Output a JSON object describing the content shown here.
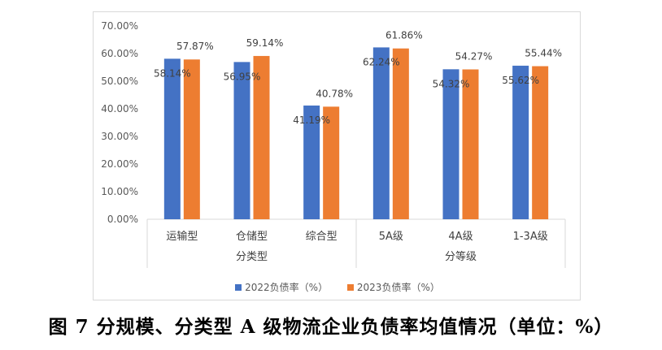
{
  "chart_data": {
    "type": "bar",
    "title": "",
    "xlabel": "",
    "ylabel": "",
    "ylim": [
      0,
      70
    ],
    "ytick_labels": [
      "0.00%",
      "10.00%",
      "20.00%",
      "30.00%",
      "40.00%",
      "50.00%",
      "60.00%",
      "70.00%"
    ],
    "categories": [
      "运输型",
      "仓储型",
      "综合型",
      "5A级",
      "4A级",
      "1-3A级"
    ],
    "groups": [
      {
        "label": "分类型",
        "categories": [
          "运输型",
          "仓储型",
          "综合型"
        ]
      },
      {
        "label": "分等级",
        "categories": [
          "5A级",
          "4A级",
          "1-3A级"
        ]
      }
    ],
    "series": [
      {
        "name": "2022负债率（%）",
        "color": "#4472C4",
        "values": [
          58.14,
          56.95,
          41.19,
          62.24,
          54.32,
          55.62
        ],
        "labels": [
          "58.14%",
          "56.95%",
          "41.19%",
          "62.24%",
          "54.32%",
          "55.62%"
        ]
      },
      {
        "name": "2023负债率（%）",
        "color": "#ED7D31",
        "values": [
          57.87,
          59.14,
          40.78,
          61.86,
          54.27,
          55.44
        ],
        "labels": [
          "57.87%",
          "59.14%",
          "40.78%",
          "61.86%",
          "54.27%",
          "55.44%"
        ]
      }
    ],
    "grid": false,
    "legend_position": "bottom"
  },
  "caption": "图 7  分规模、分类型 A 级物流企业负债率均值情况（单位：%）"
}
